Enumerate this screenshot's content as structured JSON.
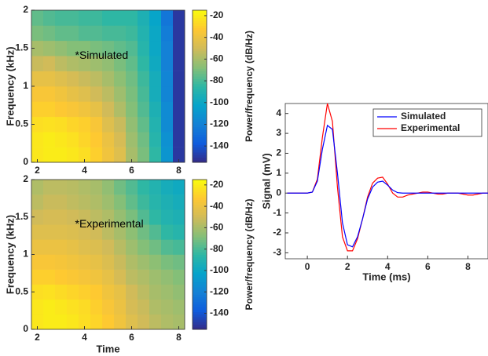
{
  "chart_data": [
    {
      "type": "heatmap",
      "annotation": "*Simulated",
      "ylabel": "Frequency (kHz)",
      "colorbar_label": "Power/frequency (dB/Hz)",
      "colormap": "parula",
      "x": [
        2,
        2.5,
        3,
        3.5,
        4,
        4.5,
        5,
        5.5,
        6,
        6.5,
        7,
        7.5,
        8
      ],
      "y": [
        0.1,
        0.3,
        0.5,
        0.7,
        0.9,
        1.1,
        1.3,
        1.5,
        1.7,
        1.9
      ],
      "values": [
        [
          -22,
          -20,
          -20,
          -22,
          -25,
          -30,
          -38,
          -45,
          -60,
          -70,
          -85,
          -110,
          -150
        ],
        [
          -22,
          -20,
          -22,
          -24,
          -28,
          -32,
          -40,
          -48,
          -62,
          -72,
          -88,
          -112,
          -150
        ],
        [
          -25,
          -24,
          -25,
          -28,
          -30,
          -35,
          -45,
          -52,
          -65,
          -75,
          -90,
          -115,
          -150
        ],
        [
          -30,
          -30,
          -33,
          -35,
          -38,
          -42,
          -50,
          -58,
          -68,
          -78,
          -92,
          -115,
          -150
        ],
        [
          -35,
          -35,
          -38,
          -42,
          -45,
          -50,
          -55,
          -62,
          -70,
          -80,
          -95,
          -118,
          -150
        ],
        [
          -42,
          -42,
          -45,
          -48,
          -52,
          -55,
          -60,
          -66,
          -72,
          -82,
          -95,
          -118,
          -150
        ],
        [
          -52,
          -50,
          -55,
          -58,
          -60,
          -62,
          -65,
          -70,
          -75,
          -85,
          -98,
          -120,
          -150
        ],
        [
          -60,
          -62,
          -65,
          -68,
          -68,
          -70,
          -72,
          -75,
          -78,
          -88,
          -100,
          -120,
          -150
        ],
        [
          -70,
          -72,
          -75,
          -75,
          -78,
          -78,
          -80,
          -80,
          -82,
          -90,
          -100,
          -122,
          -150
        ],
        [
          -75,
          -78,
          -80,
          -80,
          -82,
          -82,
          -85,
          -85,
          -85,
          -92,
          -102,
          -125,
          -150
        ]
      ],
      "xlim": [
        1.75,
        8.25
      ],
      "xticks": [
        2,
        4,
        6,
        8
      ],
      "ylim": [
        0,
        2
      ],
      "yticks": [
        0,
        0.5,
        1,
        1.5,
        2
      ],
      "clim": [
        -155,
        -15
      ],
      "cticks": [
        -20,
        -40,
        -60,
        -80,
        -100,
        -120,
        -140
      ]
    },
    {
      "type": "heatmap",
      "annotation": "*Experimental",
      "ylabel": "Frequency (kHz)",
      "xlabel": "Time",
      "colorbar_label": "Power/frequency (dB/Hz)",
      "colormap": "parula",
      "x": [
        2,
        2.5,
        3,
        3.5,
        4,
        4.5,
        5,
        5.5,
        6,
        6.5,
        7,
        7.5,
        8
      ],
      "y": [
        0.1,
        0.3,
        0.5,
        0.7,
        0.9,
        1.1,
        1.3,
        1.5,
        1.7,
        1.9
      ],
      "values": [
        [
          -22,
          -20,
          -20,
          -22,
          -25,
          -28,
          -32,
          -38,
          -45,
          -50,
          -55,
          -58,
          -60
        ],
        [
          -22,
          -20,
          -22,
          -24,
          -26,
          -30,
          -35,
          -40,
          -48,
          -52,
          -58,
          -60,
          -62
        ],
        [
          -25,
          -24,
          -26,
          -28,
          -30,
          -32,
          -38,
          -42,
          -50,
          -55,
          -60,
          -62,
          -65
        ],
        [
          -30,
          -30,
          -32,
          -34,
          -36,
          -38,
          -42,
          -48,
          -55,
          -58,
          -62,
          -65,
          -68
        ],
        [
          -35,
          -35,
          -36,
          -38,
          -40,
          -42,
          -46,
          -52,
          -58,
          -62,
          -66,
          -70,
          -72
        ],
        [
          -40,
          -40,
          -40,
          -42,
          -45,
          -46,
          -50,
          -56,
          -62,
          -68,
          -72,
          -78,
          -80
        ],
        [
          -45,
          -45,
          -45,
          -46,
          -48,
          -50,
          -55,
          -60,
          -66,
          -72,
          -78,
          -85,
          -88
        ],
        [
          -50,
          -48,
          -48,
          -50,
          -52,
          -55,
          -58,
          -64,
          -70,
          -78,
          -85,
          -90,
          -92
        ],
        [
          -55,
          -52,
          -52,
          -54,
          -56,
          -58,
          -62,
          -68,
          -75,
          -82,
          -88,
          -92,
          -95
        ],
        [
          -58,
          -55,
          -55,
          -56,
          -58,
          -60,
          -65,
          -72,
          -78,
          -85,
          -90,
          -95,
          -98
        ]
      ],
      "xlim": [
        1.75,
        8.25
      ],
      "xticks": [
        2,
        4,
        6,
        8
      ],
      "ylim": [
        0,
        2
      ],
      "yticks": [
        0,
        0.5,
        1,
        1.5,
        2
      ],
      "clim": [
        -155,
        -15
      ],
      "cticks": [
        -20,
        -40,
        -60,
        -80,
        -100,
        -120,
        -140
      ]
    },
    {
      "type": "line",
      "xlabel": "Time (ms)",
      "ylabel": "Signal (mV)",
      "legend": "upper right",
      "x": [
        -1,
        -0.75,
        -0.5,
        -0.25,
        0,
        0.25,
        0.5,
        0.75,
        1,
        1.25,
        1.5,
        1.75,
        2,
        2.25,
        2.5,
        2.75,
        3,
        3.25,
        3.5,
        3.75,
        4,
        4.25,
        4.5,
        4.75,
        5,
        5.25,
        5.5,
        5.75,
        6,
        6.25,
        6.5,
        6.75,
        7,
        7.25,
        7.5,
        7.75,
        8,
        8.25,
        8.5,
        8.75,
        9
      ],
      "series": [
        {
          "name": "Simulated",
          "color": "#0000ff",
          "values": [
            0,
            0,
            0,
            0,
            0,
            0.05,
            0.6,
            2.2,
            3.4,
            3.2,
            1.0,
            -1.5,
            -2.6,
            -2.7,
            -2.2,
            -1.3,
            -0.3,
            0.3,
            0.55,
            0.6,
            0.4,
            0.15,
            0.02,
            0,
            0,
            0,
            0,
            0,
            0,
            0,
            0,
            0,
            0,
            0,
            0,
            0,
            0,
            0,
            0,
            0,
            0
          ]
        },
        {
          "name": "Experimental",
          "color": "#ff0000",
          "values": [
            0,
            0,
            0,
            0,
            0,
            0.05,
            0.7,
            2.8,
            4.5,
            3.6,
            0.3,
            -2.2,
            -2.9,
            -2.9,
            -2.3,
            -1.3,
            -0.2,
            0.5,
            0.75,
            0.8,
            0.45,
            0,
            -0.2,
            -0.2,
            -0.1,
            -0.05,
            0,
            0.05,
            0.05,
            0,
            -0.05,
            -0.05,
            0,
            0,
            0,
            -0.05,
            -0.1,
            -0.1,
            -0.05,
            0,
            0
          ]
        }
      ],
      "xlim": [
        -1.1,
        9
      ],
      "xticks": [
        0,
        2,
        4,
        6,
        8
      ],
      "ylim": [
        -3.3,
        4.5
      ],
      "yticks": [
        -3,
        -2,
        -1,
        0,
        1,
        2,
        3,
        4
      ]
    }
  ]
}
